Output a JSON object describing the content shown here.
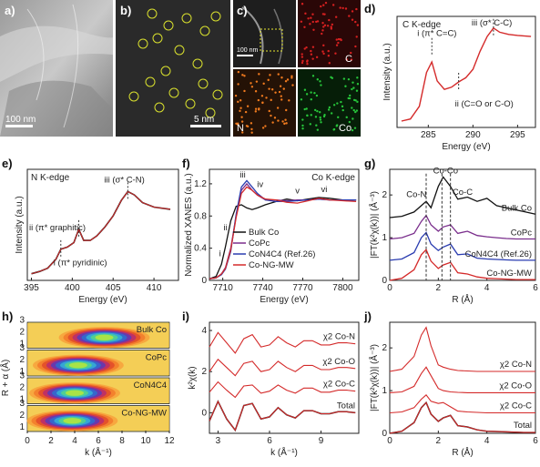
{
  "panels": {
    "a": {
      "label": "a)",
      "scale": "100 nm"
    },
    "b": {
      "label": "b)",
      "scale": "5 nm"
    },
    "c": {
      "label": "c)",
      "scale": "100 nm",
      "maps": [
        "C",
        "N",
        "Co"
      ]
    },
    "d": {
      "label": "d)"
    },
    "e": {
      "label": "e)"
    },
    "f": {
      "label": "f)"
    },
    "g": {
      "label": "g)"
    },
    "h": {
      "label": "h)"
    },
    "i": {
      "label": "i)"
    },
    "j": {
      "label": "j)"
    }
  },
  "colors": {
    "bulk_co": "#111111",
    "copc": "#7a2e8c",
    "con4c4": "#2a3cb0",
    "co_ng_mw": "#d42a2a",
    "fit_red": "#d42a2a",
    "data_black": "#111111",
    "dashed": "#333333",
    "map_c": "#d62020",
    "map_n": "#f07a1e",
    "map_co": "#27c43a"
  },
  "chart_data": [
    {
      "id": "d",
      "type": "line",
      "title": "C K-edge",
      "xlabel": "Energy (eV)",
      "ylabel": "Intensity (a.u.)",
      "xlim": [
        281.5,
        297
      ],
      "xticks": [
        285,
        290,
        295
      ],
      "x": [
        282,
        283,
        284,
        284.8,
        285.4,
        286,
        286.8,
        287.6,
        288.4,
        289.2,
        290,
        290.8,
        291.6,
        292.3,
        293,
        294,
        295,
        296.5
      ],
      "y": [
        0.06,
        0.08,
        0.2,
        0.52,
        0.62,
        0.44,
        0.36,
        0.38,
        0.43,
        0.47,
        0.55,
        0.72,
        0.86,
        0.94,
        0.9,
        0.88,
        0.87,
        0.86
      ],
      "annotations": [
        {
          "text": "i (π* C=C)",
          "x": 285.4
        },
        {
          "text": "ii (C=O or C-O)",
          "x": 288.4
        },
        {
          "text": "iii (σ* C-C)",
          "x": 292.3
        }
      ]
    },
    {
      "id": "e",
      "type": "line",
      "title": "N K-edge",
      "xlabel": "Energy (eV)",
      "ylabel": "Intensity (a.u.)",
      "xlim": [
        394.5,
        413
      ],
      "xticks": [
        395,
        400,
        405,
        410
      ],
      "x": [
        395,
        396,
        397,
        398,
        398.6,
        399.4,
        400.2,
        400.8,
        401.4,
        402.2,
        403,
        404,
        405,
        406,
        406.8,
        407.6,
        408.6,
        410,
        412
      ],
      "y": [
        0.06,
        0.08,
        0.11,
        0.19,
        0.28,
        0.3,
        0.34,
        0.46,
        0.36,
        0.36,
        0.4,
        0.48,
        0.58,
        0.72,
        0.8,
        0.77,
        0.7,
        0.66,
        0.64
      ],
      "annotations": [
        {
          "text": "i (π* pyridinic)",
          "x": 398.6
        },
        {
          "text": "ii (π* graphitic)",
          "x": 400.8
        },
        {
          "text": "iii (σ* C-N)",
          "x": 406.8
        }
      ]
    },
    {
      "id": "f",
      "type": "line",
      "title": "Co K-edge",
      "xlabel": "Energy (eV)",
      "ylabel": "Normalized XANES (a.u.)",
      "xlim": [
        7700,
        7812
      ],
      "ylim": [
        0,
        1.38
      ],
      "xticks": [
        7710,
        7740,
        7770,
        7800
      ],
      "yticks": [
        0.0,
        0.4,
        0.8,
        1.2
      ],
      "x": [
        7700,
        7705,
        7709,
        7712,
        7716,
        7720,
        7724,
        7728,
        7732,
        7736,
        7742,
        7750,
        7758,
        7766,
        7774,
        7782,
        7790,
        7800,
        7810
      ],
      "series": [
        {
          "name": "Bulk Co",
          "values": [
            0.02,
            0.05,
            0.2,
            0.42,
            0.74,
            0.92,
            0.94,
            0.9,
            0.88,
            0.9,
            0.94,
            0.98,
            1.01,
            0.99,
            1.01,
            1.03,
            1.02,
            1.0,
            1.0
          ]
        },
        {
          "name": "CoPc",
          "values": [
            0.02,
            0.03,
            0.08,
            0.16,
            0.4,
            0.8,
            1.12,
            1.2,
            1.12,
            1.06,
            1.0,
            1.0,
            0.99,
            1.0,
            1.0,
            1.01,
            1.0,
            1.0,
            1.0
          ]
        },
        {
          "name": "CoN4C4 (Ref.26)",
          "values": [
            0.02,
            0.03,
            0.07,
            0.14,
            0.36,
            0.82,
            1.16,
            1.24,
            1.16,
            1.08,
            1.0,
            0.98,
            0.98,
            0.99,
            1.0,
            1.01,
            1.0,
            1.0,
            1.0
          ]
        },
        {
          "name": "Co-NG-MW",
          "values": [
            0.02,
            0.03,
            0.08,
            0.15,
            0.38,
            0.78,
            1.08,
            1.16,
            1.12,
            1.06,
            1.01,
            1.0,
            0.97,
            0.96,
            0.99,
            1.02,
            1.0,
            0.99,
            0.98
          ]
        }
      ],
      "annotations": [
        "i",
        "ii",
        "iii",
        "iv",
        "v",
        "vi"
      ]
    },
    {
      "id": "g",
      "type": "line",
      "xlabel": "R (Å)",
      "ylabel": "|FT(k²χ(k))| (Å⁻³)",
      "xlim": [
        0,
        6
      ],
      "ylim": [
        0,
        2.6
      ],
      "xticks": [
        0,
        2,
        4,
        6
      ],
      "yticks": [
        0,
        1,
        2
      ],
      "x": [
        0,
        0.5,
        1,
        1.3,
        1.5,
        1.7,
        2,
        2.2,
        2.5,
        2.8,
        3.2,
        3.6,
        4,
        4.4,
        4.8,
        5.2,
        5.6,
        6
      ],
      "series": [
        {
          "name": "Bulk Co",
          "values": [
            1.47,
            1.5,
            1.6,
            1.75,
            1.85,
            1.7,
            2.2,
            2.42,
            2.2,
            1.9,
            1.95,
            1.85,
            1.92,
            1.75,
            1.7,
            1.65,
            1.6,
            1.55
          ]
        },
        {
          "name": "CoPc",
          "values": [
            0.97,
            1.0,
            1.1,
            1.38,
            1.52,
            1.3,
            1.15,
            1.25,
            1.3,
            1.1,
            1.15,
            1.05,
            1.02,
            1.0,
            0.98,
            0.97,
            0.97,
            0.97
          ]
        },
        {
          "name": "CoN4C4 (Ref.26)",
          "values": [
            0.47,
            0.5,
            0.65,
            1.0,
            1.12,
            0.85,
            0.7,
            0.78,
            0.85,
            0.6,
            0.62,
            0.52,
            0.5,
            0.49,
            0.48,
            0.47,
            0.47,
            0.47
          ]
        },
        {
          "name": "Co-NG-MW",
          "values": [
            0.0,
            0.05,
            0.25,
            0.6,
            0.72,
            0.45,
            0.28,
            0.36,
            0.42,
            0.18,
            0.15,
            0.08,
            0.05,
            0.04,
            0.03,
            0.02,
            0.02,
            0.02
          ]
        }
      ],
      "annotations": [
        "Co-N",
        "Co-Co",
        "Co-C"
      ],
      "markers_x": [
        1.5,
        2.15,
        2.5
      ]
    },
    {
      "id": "h",
      "type": "heatmap",
      "xlabel": "k (Å⁻¹)",
      "ylabel": "R + α (Å)",
      "xlim": [
        0,
        12
      ],
      "xticks": [
        0,
        2,
        4,
        6,
        8,
        10,
        12
      ],
      "ylim": [
        1,
        3
      ],
      "yticks": [
        1,
        2,
        3
      ],
      "strips": [
        "Bulk Co",
        "CoPc",
        "CoN4C4",
        "Co-NG-MW"
      ]
    },
    {
      "id": "i",
      "type": "line",
      "xlabel": "k (Å⁻¹)",
      "ylabel": "k²χ(k)",
      "xlim": [
        2.5,
        11.2
      ],
      "ylim": [
        -1,
        4.4
      ],
      "xticks": [
        3,
        6,
        9
      ],
      "yticks": [
        0,
        2,
        4
      ],
      "x": [
        2.5,
        3,
        3.5,
        4,
        4.5,
        5,
        5.5,
        6,
        6.5,
        7,
        7.5,
        8,
        8.5,
        9,
        9.5,
        10,
        10.5,
        11
      ],
      "series": [
        {
          "name": "χ2 Co-N",
          "values": [
            3.2,
            3.9,
            3.4,
            2.9,
            3.6,
            3.8,
            3.2,
            3.3,
            3.7,
            3.4,
            3.2,
            3.5,
            3.5,
            3.3,
            3.3,
            3.4,
            3.4,
            3.35
          ]
        },
        {
          "name": "χ2 Co-O",
          "values": [
            2.0,
            2.6,
            2.2,
            1.8,
            2.4,
            2.5,
            2.0,
            2.1,
            2.5,
            2.2,
            2.0,
            2.3,
            2.3,
            2.1,
            2.1,
            2.2,
            2.2,
            2.15
          ]
        },
        {
          "name": "χ2 Co-C",
          "values": [
            1.0,
            1.5,
            1.1,
            0.75,
            1.3,
            1.35,
            0.95,
            1.05,
            1.35,
            1.1,
            0.95,
            1.2,
            1.2,
            1.0,
            1.0,
            1.1,
            1.1,
            1.05
          ]
        },
        {
          "name": "Total",
          "values": [
            -0.4,
            0.55,
            -0.3,
            -0.85,
            0.35,
            0.45,
            -0.3,
            -0.2,
            0.25,
            -0.1,
            -0.25,
            0.1,
            0.1,
            -0.05,
            -0.05,
            0.05,
            0.05,
            0.0
          ]
        }
      ]
    },
    {
      "id": "j",
      "type": "line",
      "xlabel": "R (Å)",
      "ylabel": "|FT(k²χ(k))| (Å⁻³)",
      "xlim": [
        0,
        6
      ],
      "ylim": [
        0,
        2.6
      ],
      "xticks": [
        0,
        2,
        4,
        6
      ],
      "yticks": [
        0,
        1,
        2
      ],
      "x": [
        0,
        0.5,
        1,
        1.3,
        1.5,
        1.7,
        2,
        2.2,
        2.5,
        2.8,
        3.2,
        3.6,
        4,
        4.5,
        5,
        5.5,
        6
      ],
      "series": [
        {
          "name": "χ2 Co-N",
          "values": [
            1.45,
            1.5,
            1.8,
            2.3,
            2.48,
            2.05,
            1.6,
            1.55,
            1.5,
            1.47,
            1.46,
            1.45,
            1.45,
            1.45,
            1.45,
            1.45,
            1.45
          ]
        },
        {
          "name": "χ2 Co-O",
          "values": [
            0.95,
            0.97,
            1.1,
            1.4,
            1.55,
            1.35,
            1.05,
            1.0,
            0.97,
            0.96,
            0.95,
            0.95,
            0.95,
            0.95,
            0.95,
            0.95,
            0.95
          ]
        },
        {
          "name": "χ2 Co-C",
          "values": [
            0.48,
            0.5,
            0.6,
            0.8,
            0.9,
            0.75,
            0.7,
            0.72,
            0.62,
            0.52,
            0.5,
            0.49,
            0.48,
            0.48,
            0.48,
            0.48,
            0.48
          ]
        },
        {
          "name": "Total",
          "values": [
            0.0,
            0.05,
            0.25,
            0.6,
            0.72,
            0.45,
            0.28,
            0.36,
            0.42,
            0.18,
            0.15,
            0.08,
            0.05,
            0.04,
            0.03,
            0.02,
            0.02
          ]
        }
      ]
    }
  ]
}
